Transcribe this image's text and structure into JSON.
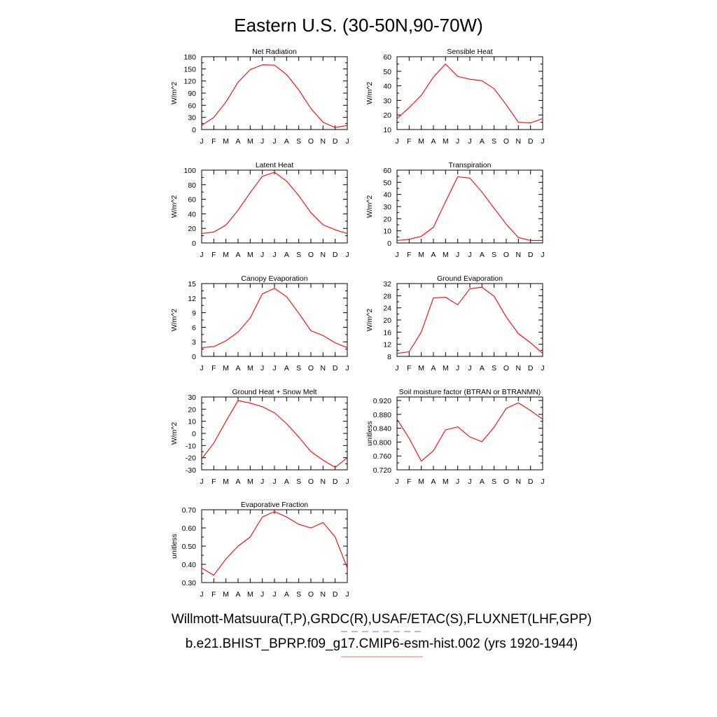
{
  "title": "Eastern U.S. (30-50N,90-70W)",
  "footer": {
    "line1": "Willmott-Matsuura(T,P),GRDC(R),USAF/ETAC(S),FLUXNET(LHF,GPP)",
    "line2": "b.e21.BHIST_BPRP.f09_g17.CMIP6-esm-hist.002 (yrs 1920-1944)",
    "line1_legend_color": "#6b6bff",
    "line2_legend_color": "#ff6b6b"
  },
  "colors": {
    "series": "#ff0000",
    "axis": "#000000"
  },
  "chart_data": [
    {
      "type": "line",
      "title": "Net Radiation",
      "ylabel": "W/m^2",
      "categories": [
        "J",
        "F",
        "M",
        "A",
        "M",
        "J",
        "J",
        "A",
        "S",
        "O",
        "N",
        "D",
        "J"
      ],
      "ylim": [
        0,
        180
      ],
      "yticks": [
        "0",
        "30",
        "60",
        "90",
        "120",
        "150",
        "180"
      ],
      "values": [
        10,
        30,
        68,
        117,
        148,
        160,
        159,
        136,
        98,
        52,
        18,
        5,
        10
      ]
    },
    {
      "type": "line",
      "title": "Sensible Heat",
      "ylabel": "W/m^2",
      "categories": [
        "J",
        "F",
        "M",
        "A",
        "M",
        "J",
        "J",
        "A",
        "S",
        "O",
        "N",
        "D",
        "J"
      ],
      "ylim": [
        10,
        60
      ],
      "yticks": [
        "10",
        "20",
        "30",
        "40",
        "50",
        "60"
      ],
      "values": [
        17.5,
        25,
        33.5,
        46,
        55,
        46.5,
        44.5,
        43.5,
        38,
        27,
        15,
        14.5,
        17.5
      ]
    },
    {
      "type": "line",
      "title": "Latent Heat",
      "ylabel": "W/m^2",
      "categories": [
        "J",
        "F",
        "M",
        "A",
        "M",
        "J",
        "J",
        "A",
        "S",
        "O",
        "N",
        "D",
        "J"
      ],
      "ylim": [
        0,
        100
      ],
      "yticks": [
        "0",
        "20",
        "40",
        "60",
        "80",
        "100"
      ],
      "values": [
        13,
        15,
        24.5,
        45,
        69,
        91.5,
        97,
        85,
        65,
        41.5,
        25,
        18,
        13
      ]
    },
    {
      "type": "line",
      "title": "Transpiration",
      "ylabel": "W/m^2",
      "categories": [
        "J",
        "F",
        "M",
        "A",
        "M",
        "J",
        "J",
        "A",
        "S",
        "O",
        "N",
        "D",
        "J"
      ],
      "ylim": [
        0,
        60
      ],
      "yticks": [
        "0",
        "10",
        "20",
        "30",
        "40",
        "50",
        "60"
      ],
      "values": [
        2,
        3,
        5.5,
        13,
        34,
        54.5,
        53.5,
        42,
        28.5,
        15.5,
        4.5,
        2,
        2
      ]
    },
    {
      "type": "line",
      "title": "Canopy Evaporation",
      "ylabel": "W/m^2",
      "categories": [
        "J",
        "F",
        "M",
        "A",
        "M",
        "J",
        "J",
        "A",
        "S",
        "O",
        "N",
        "D",
        "J"
      ],
      "ylim": [
        0,
        15
      ],
      "yticks": [
        "0",
        "3",
        "6",
        "9",
        "12",
        "15"
      ],
      "values": [
        1.8,
        2,
        3.2,
        5,
        7.9,
        12.9,
        14,
        12.3,
        8.9,
        5.3,
        4.3,
        2.8,
        1.8
      ]
    },
    {
      "type": "line",
      "title": "Ground Evaporation",
      "ylabel": "W/m^2",
      "categories": [
        "J",
        "F",
        "M",
        "A",
        "M",
        "J",
        "J",
        "A",
        "S",
        "O",
        "N",
        "D",
        "J"
      ],
      "ylim": [
        8,
        32
      ],
      "yticks": [
        "8",
        "12",
        "16",
        "20",
        "24",
        "28",
        "32"
      ],
      "values": [
        9,
        9.5,
        16,
        27.3,
        27.5,
        25,
        30.3,
        30.8,
        27.8,
        21,
        15.5,
        12.5,
        9
      ]
    },
    {
      "type": "line",
      "title": "Ground Heat + Snow Melt",
      "ylabel": "W/m^2",
      "categories": [
        "J",
        "F",
        "M",
        "A",
        "M",
        "J",
        "J",
        "A",
        "S",
        "O",
        "N",
        "D",
        "J"
      ],
      "ylim": [
        -30,
        30
      ],
      "yticks": [
        "-30",
        "-20",
        "-10",
        "0",
        "10",
        "20",
        "30"
      ],
      "values": [
        -21,
        -8,
        10,
        27,
        25,
        22,
        17,
        8,
        -3,
        -15,
        -22,
        -28,
        -20
      ]
    },
    {
      "type": "line",
      "title": "Soil moisture factor (BTRAN or BTRANMN)",
      "ylabel": "unitless",
      "categories": [
        "J",
        "F",
        "M",
        "A",
        "M",
        "J",
        "J",
        "A",
        "S",
        "O",
        "N",
        "D",
        "J"
      ],
      "ylim": [
        0.72,
        0.93
      ],
      "yticks": [
        "0.720",
        "0.760",
        "0.800",
        "0.840",
        "0.880",
        "0.920"
      ],
      "values": [
        0.866,
        0.811,
        0.745,
        0.775,
        0.835,
        0.844,
        0.815,
        0.801,
        0.843,
        0.897,
        0.913,
        0.891,
        0.866
      ]
    },
    {
      "type": "line",
      "title": "Evaporative Fraction",
      "ylabel": "unitless",
      "categories": [
        "J",
        "F",
        "M",
        "A",
        "M",
        "J",
        "J",
        "A",
        "S",
        "O",
        "N",
        "D",
        "J"
      ],
      "ylim": [
        0.3,
        0.7
      ],
      "yticks": [
        "0.30",
        "0.40",
        "0.50",
        "0.60",
        "0.70"
      ],
      "values": [
        0.38,
        0.34,
        0.43,
        0.5,
        0.55,
        0.66,
        0.69,
        0.66,
        0.62,
        0.6,
        0.63,
        0.55,
        0.38
      ]
    }
  ]
}
